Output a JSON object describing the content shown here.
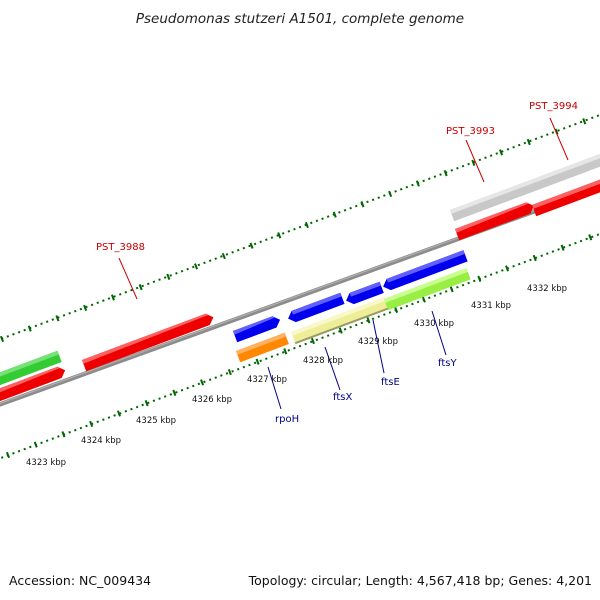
{
  "title": "Pseudomonas stutzeri A1501, complete genome",
  "footer": {
    "accession": "Accession: NC_009434",
    "topology": "Topology: circular; Length: 4,567,418 bp; Genes: 4,201"
  },
  "scale_labels": [
    "4323 kbp",
    "4324 kbp",
    "4325 kbp",
    "4326 kbp",
    "4327 kbp",
    "4328 kbp",
    "4329 kbp",
    "4330 kbp",
    "4331 kbp",
    "4332 kbp"
  ],
  "gene_labels": [
    {
      "text": "PST_3988",
      "color": "#cc0000"
    },
    {
      "text": "PST_3993",
      "color": "#cc0000"
    },
    {
      "text": "PST_3994",
      "color": "#cc0000"
    },
    {
      "text": "rpoH",
      "color": "#000088"
    },
    {
      "text": "ftsX",
      "color": "#000088"
    },
    {
      "text": "ftsE",
      "color": "#000088"
    },
    {
      "text": "ftsY",
      "color": "#000088"
    }
  ],
  "colors": {
    "backbone": "#808080",
    "ticks": "#006600",
    "red": "#ee0000",
    "green": "#33cc33",
    "blue": "#0000ee",
    "orange": "#ff8800",
    "yellow": "#eeee99",
    "lime": "#99ee44",
    "gray": "#c8c8c8"
  }
}
